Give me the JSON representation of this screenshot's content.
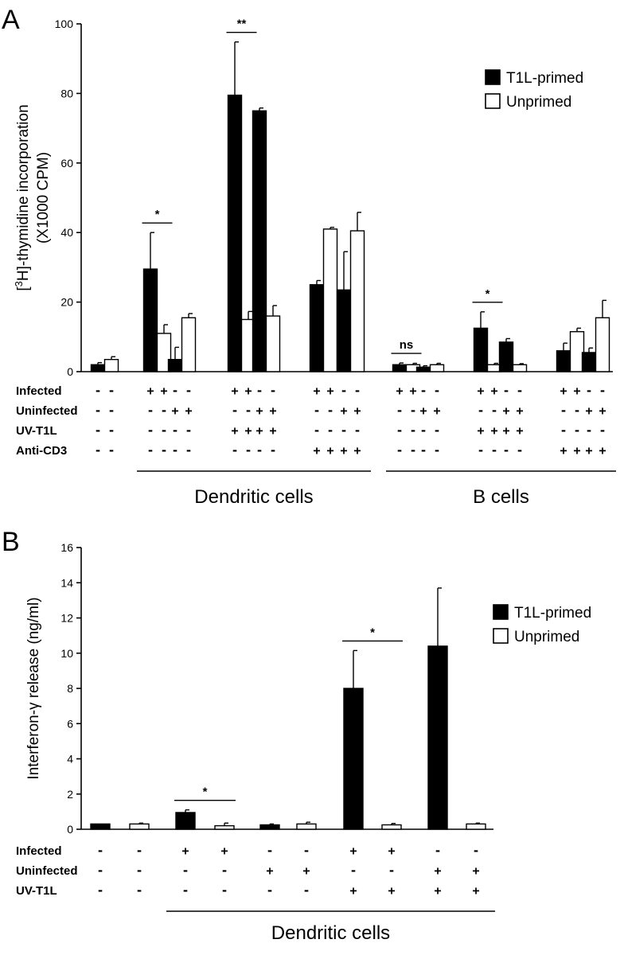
{
  "chart_data": [
    {
      "panel": "A",
      "type": "bar",
      "ylabel_prefix": "[",
      "ylabel_sup": "3",
      "ylabel_suffix": "H]-thymidine incorporation",
      "ylabel_line2": "(X1000 CPM)",
      "ylim": [
        0,
        100
      ],
      "yticks": [
        "0",
        "20",
        "40",
        "60",
        "80",
        "100"
      ],
      "legend": [
        "T1L-primed",
        "Unprimed"
      ],
      "legend_position": "top-right",
      "series_colors": [
        "#000000",
        "#ffffff"
      ],
      "bars": [
        {
          "series": 0,
          "value": 2,
          "err": 0.6
        },
        {
          "series": 1,
          "value": 3.5,
          "err": 0.8
        },
        {
          "series": 0,
          "value": 29.5,
          "err": 10.5
        },
        {
          "series": 1,
          "value": 11,
          "err": 2.5
        },
        {
          "series": 0,
          "value": 3.5,
          "err": 3.5
        },
        {
          "series": 1,
          "value": 15.5,
          "err": 1.2
        },
        {
          "series": 0,
          "value": 79.5,
          "err": 15.3
        },
        {
          "series": 1,
          "value": 15,
          "err": 2.3
        },
        {
          "series": 0,
          "value": 75,
          "err": 0.8
        },
        {
          "series": 1,
          "value": 16,
          "err": 3
        },
        {
          "series": 0,
          "value": 25,
          "err": 1.2
        },
        {
          "series": 1,
          "value": 41,
          "err": 0.5
        },
        {
          "series": 0,
          "value": 23.5,
          "err": 11
        },
        {
          "series": 1,
          "value": 40.5,
          "err": 5.3
        },
        {
          "series": 0,
          "value": 2,
          "err": 0.5
        },
        {
          "series": 1,
          "value": 2,
          "err": 0.4
        },
        {
          "series": 0,
          "value": 1.3,
          "err": 0.4
        },
        {
          "series": 1,
          "value": 2,
          "err": 0.4
        },
        {
          "series": 0,
          "value": 12.5,
          "err": 4.7
        },
        {
          "series": 1,
          "value": 2,
          "err": 0.4
        },
        {
          "series": 0,
          "value": 8.5,
          "err": 1
        },
        {
          "series": 1,
          "value": 2,
          "err": 0.3
        },
        {
          "series": 0,
          "value": 6,
          "err": 2.2
        },
        {
          "series": 1,
          "value": 11.5,
          "err": 1
        },
        {
          "series": 0,
          "value": 5.5,
          "err": 1.3
        },
        {
          "series": 1,
          "value": 15.5,
          "err": 5
        }
      ],
      "significance": [
        {
          "label": "*",
          "bars": [
            2,
            3
          ]
        },
        {
          "label": "**",
          "bars": [
            6,
            7
          ]
        },
        {
          "label": "ns",
          "bars": [
            14,
            15
          ]
        },
        {
          "label": "*",
          "bars": [
            18,
            19
          ]
        }
      ],
      "condition_rows": [
        {
          "label": "Infected",
          "marks": [
            "-",
            "-",
            "+",
            "+",
            "-",
            "-",
            "+",
            "+",
            "-",
            "-",
            "+",
            "+",
            "-",
            "-",
            "+",
            "+",
            "-",
            "-",
            "+",
            "+",
            "-",
            "-",
            "+",
            "+",
            "-",
            "-"
          ]
        },
        {
          "label": "Uninfected",
          "marks": [
            "-",
            "-",
            "-",
            "-",
            "+",
            "+",
            "-",
            "-",
            "+",
            "+",
            "-",
            "-",
            "+",
            "+",
            "-",
            "-",
            "+",
            "+",
            "-",
            "-",
            "+",
            "+",
            "-",
            "-",
            "+",
            "+"
          ]
        },
        {
          "label": "UV-T1L",
          "marks": [
            "-",
            "-",
            "-",
            "-",
            "-",
            "-",
            "+",
            "+",
            "+",
            "+",
            "-",
            "-",
            "-",
            "-",
            "-",
            "-",
            "-",
            "-",
            "+",
            "+",
            "+",
            "+",
            "-",
            "-",
            "-",
            "-"
          ]
        },
        {
          "label": "Anti-CD3",
          "marks": [
            "-",
            "-",
            "-",
            "-",
            "-",
            "-",
            "-",
            "-",
            "-",
            "-",
            "+",
            "+",
            "+",
            "+",
            "-",
            "-",
            "-",
            "-",
            "-",
            "-",
            "-",
            "-",
            "+",
            "+",
            "+",
            "+"
          ]
        }
      ],
      "groups": [
        {
          "label": "Dendritic cells",
          "bars": [
            2,
            13
          ]
        },
        {
          "label": "B cells",
          "bars": [
            14,
            25
          ]
        }
      ]
    },
    {
      "panel": "B",
      "type": "bar",
      "ylabel": "Interferon-γ release (ng/ml)",
      "ylim": [
        0,
        16
      ],
      "yticks": [
        "0",
        "2",
        "4",
        "6",
        "8",
        "10",
        "12",
        "14",
        "16"
      ],
      "legend": [
        "T1L-primed",
        "Unprimed"
      ],
      "legend_position": "top-right",
      "series_colors": [
        "#000000",
        "#ffffff"
      ],
      "bars": [
        {
          "series": 0,
          "value": 0.3,
          "err": 0
        },
        {
          "series": 1,
          "value": 0.3,
          "err": 0.05
        },
        {
          "series": 0,
          "value": 0.95,
          "err": 0.15
        },
        {
          "series": 1,
          "value": 0.2,
          "err": 0.15
        },
        {
          "series": 0,
          "value": 0.25,
          "err": 0.05
        },
        {
          "series": 1,
          "value": 0.3,
          "err": 0.1
        },
        {
          "series": 0,
          "value": 8,
          "err": 2.15
        },
        {
          "series": 1,
          "value": 0.25,
          "err": 0.08
        },
        {
          "series": 0,
          "value": 10.4,
          "err": 3.3
        },
        {
          "series": 1,
          "value": 0.3,
          "err": 0.05
        }
      ],
      "significance": [
        {
          "label": "*",
          "bars": [
            2,
            3
          ]
        },
        {
          "label": "*",
          "bars": [
            6,
            7
          ]
        }
      ],
      "condition_rows": [
        {
          "label": "Infected",
          "marks": [
            "-",
            "-",
            "+",
            "+",
            "-",
            "-",
            "+",
            "+",
            "-",
            "-"
          ]
        },
        {
          "label": "Uninfected",
          "marks": [
            "-",
            "-",
            "-",
            "-",
            "+",
            "+",
            "-",
            "-",
            "+",
            "+"
          ]
        },
        {
          "label": "UV-T1L",
          "marks": [
            "-",
            "-",
            "-",
            "-",
            "-",
            "-",
            "+",
            "+",
            "+",
            "+"
          ]
        }
      ],
      "groups": [
        {
          "label": "Dendritic cells",
          "bars": [
            2,
            9
          ]
        }
      ]
    }
  ]
}
